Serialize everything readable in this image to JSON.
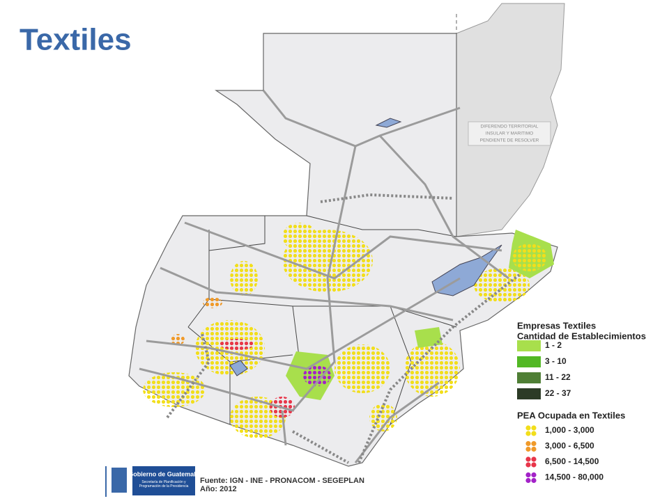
{
  "title": "Textiles",
  "map_note": [
    "DIFERENDO TERRITORIAL",
    "INSULAR Y MARITIMO",
    "PENDIENTE DE RESOLVER"
  ],
  "legend": {
    "establishments": {
      "title": [
        "Empresas Textiles",
        "Cantidad de Establecimientos"
      ],
      "items": [
        {
          "label": "1 - 2",
          "color": "#a8df4c"
        },
        {
          "label": "3 - 10",
          "color": "#52b824"
        },
        {
          "label": "11 - 22",
          "color": "#4f7f35"
        },
        {
          "label": "22 - 37",
          "color": "#2c3b26"
        }
      ]
    },
    "pea": {
      "title": "PEA Ocupada en Textiles",
      "items": [
        {
          "label": "1,000 - 3,000",
          "color": "#f2de1b"
        },
        {
          "label": "3,000 - 6,500",
          "color": "#f09a2a"
        },
        {
          "label": "6,500 - 14,500",
          "color": "#e8364a"
        },
        {
          "label": "14,500 - 80,000",
          "color": "#a322c8"
        }
      ]
    }
  },
  "source": [
    "Fuente: IGN - INE - PRONACOM - SEGEPLAN",
    "Año: 2012"
  ],
  "logo": {
    "name": "Gobierno de Guatemala",
    "subtitle": "Secretaría de Planificación y Programación de la Presidencia"
  }
}
